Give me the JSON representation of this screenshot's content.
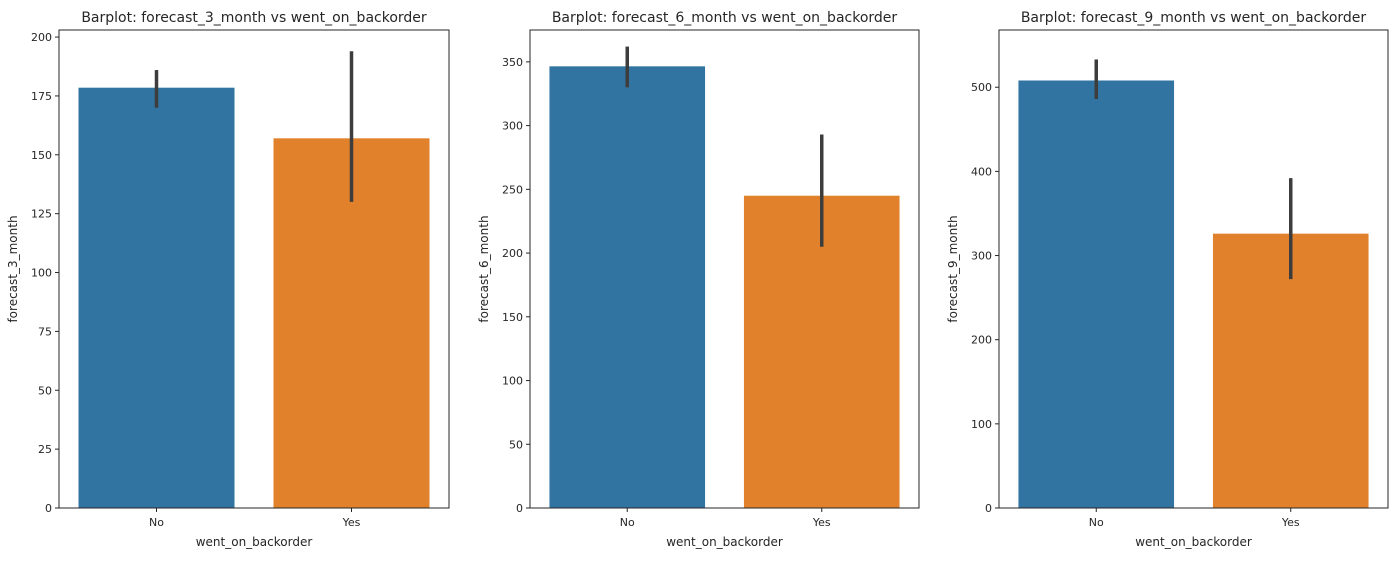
{
  "chart_data": [
    {
      "type": "bar",
      "title": "Barplot: forecast_3_month vs went_on_backorder",
      "xlabel": "went_on_backorder",
      "ylabel": "forecast_3_month",
      "categories": [
        "No",
        "Yes"
      ],
      "values": [
        178.5,
        157
      ],
      "error_low": [
        170,
        130
      ],
      "error_high": [
        186,
        194
      ],
      "ylim": [
        0,
        203
      ],
      "yticks": [
        0,
        25,
        50,
        75,
        100,
        125,
        150,
        175,
        200
      ],
      "colors": [
        "#3274a1",
        "#e1812c"
      ],
      "grid": false,
      "legend": "none"
    },
    {
      "type": "bar",
      "title": "Barplot: forecast_6_month vs went_on_backorder",
      "xlabel": "went_on_backorder",
      "ylabel": "forecast_6_month",
      "categories": [
        "No",
        "Yes"
      ],
      "values": [
        346.5,
        245
      ],
      "error_low": [
        330,
        205
      ],
      "error_high": [
        362,
        293
      ],
      "ylim": [
        0,
        375
      ],
      "yticks": [
        0,
        50,
        100,
        150,
        200,
        250,
        300,
        350
      ],
      "colors": [
        "#3274a1",
        "#e1812c"
      ],
      "grid": false,
      "legend": "none"
    },
    {
      "type": "bar",
      "title": "Barplot: forecast_9_month vs went_on_backorder",
      "xlabel": "went_on_backorder",
      "ylabel": "forecast_9_month",
      "categories": [
        "No",
        "Yes"
      ],
      "values": [
        508,
        326
      ],
      "error_low": [
        486,
        272
      ],
      "error_high": [
        533,
        392
      ],
      "ylim": [
        0,
        568
      ],
      "yticks": [
        0,
        100,
        200,
        300,
        400,
        500
      ],
      "colors": [
        "#3274a1",
        "#e1812c"
      ],
      "grid": false,
      "legend": "none"
    }
  ]
}
